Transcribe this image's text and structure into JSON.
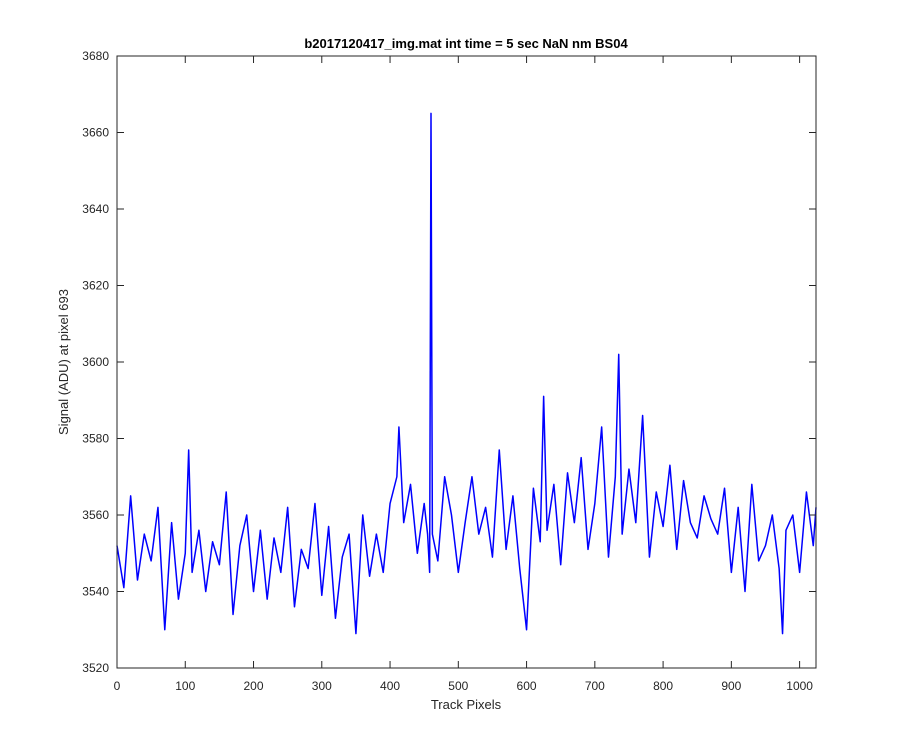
{
  "chart_data": {
    "type": "line",
    "title": "b2017120417_img.mat int time = 5 sec  NaN nm BS04",
    "xlabel": "Track Pixels",
    "ylabel": "Signal (ADU) at pixel 693",
    "xlim": [
      0,
      1024
    ],
    "ylim": [
      3520,
      3680
    ],
    "xticks": [
      0,
      100,
      200,
      300,
      400,
      500,
      600,
      700,
      800,
      900,
      1000
    ],
    "yticks": [
      3520,
      3540,
      3560,
      3580,
      3600,
      3620,
      3640,
      3660,
      3680
    ],
    "grid": false,
    "series": [
      {
        "color": "#0000ff",
        "x": [
          0,
          10,
          20,
          30,
          40,
          50,
          60,
          70,
          80,
          90,
          100,
          105,
          110,
          120,
          130,
          140,
          150,
          160,
          170,
          180,
          190,
          200,
          210,
          220,
          230,
          240,
          250,
          260,
          270,
          280,
          290,
          300,
          310,
          320,
          330,
          340,
          350,
          360,
          370,
          380,
          390,
          400,
          410,
          413,
          420,
          430,
          440,
          450,
          455,
          458,
          460,
          462,
          470,
          480,
          490,
          500,
          510,
          520,
          530,
          540,
          550,
          560,
          570,
          580,
          590,
          600,
          610,
          620,
          625,
          630,
          640,
          650,
          660,
          670,
          680,
          690,
          700,
          710,
          720,
          730,
          735,
          740,
          750,
          760,
          770,
          780,
          790,
          800,
          810,
          820,
          830,
          840,
          850,
          860,
          870,
          880,
          890,
          900,
          910,
          920,
          930,
          940,
          950,
          960,
          970,
          975,
          980,
          990,
          1000,
          1010,
          1020,
          1024
        ],
        "values": [
          3552,
          3541,
          3565,
          3543,
          3555,
          3548,
          3562,
          3530,
          3558,
          3538,
          3550,
          3577,
          3545,
          3556,
          3540,
          3553,
          3547,
          3566,
          3534,
          3552,
          3560,
          3540,
          3556,
          3538,
          3554,
          3545,
          3562,
          3536,
          3551,
          3546,
          3563,
          3539,
          3557,
          3533,
          3549,
          3555,
          3529,
          3560,
          3544,
          3555,
          3545,
          3563,
          3570,
          3583,
          3558,
          3568,
          3550,
          3563,
          3555,
          3545,
          3665,
          3555,
          3548,
          3570,
          3560,
          3545,
          3558,
          3570,
          3555,
          3562,
          3549,
          3577,
          3551,
          3565,
          3546,
          3530,
          3567,
          3553,
          3591,
          3556,
          3568,
          3547,
          3571,
          3558,
          3575,
          3551,
          3563,
          3583,
          3549,
          3570,
          3602,
          3555,
          3572,
          3558,
          3586,
          3549,
          3566,
          3557,
          3573,
          3551,
          3569,
          3558,
          3554,
          3565,
          3559,
          3555,
          3567,
          3545,
          3562,
          3540,
          3568,
          3548,
          3552,
          3560,
          3546,
          3529,
          3556,
          3560,
          3545,
          3566,
          3552,
          3562
        ]
      }
    ]
  }
}
